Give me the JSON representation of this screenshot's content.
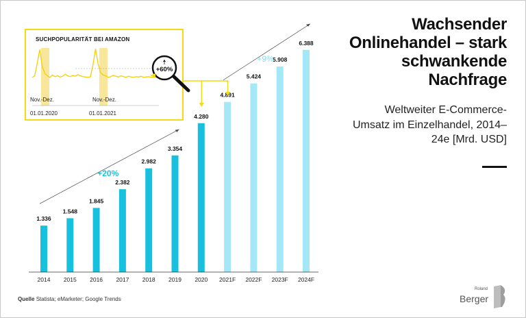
{
  "title": "Wachsender Onlinehandel – stark schwankende Nachfrage",
  "subtitle": "Weltweiter E-Commerce-Umsatz im Einzelhandel, 2014–24e [Mrd. USD]",
  "source_label": "Quelle",
  "source_text": "Statista; eMarketer; Google Trends",
  "logo": {
    "small": "Roland",
    "big": "Berger"
  },
  "colors": {
    "actual": "#17c1de",
    "forecast": "#a4e7f6",
    "inset_border": "#f2da14",
    "inset_highlight": "#f8e79a",
    "growth": "#17c1de",
    "forecast_growth": "#88d9ee"
  },
  "chart_data": [
    {
      "type": "bar",
      "categories": [
        "2014",
        "2015",
        "2016",
        "2017",
        "2018",
        "2019",
        "2020",
        "2021F",
        "2022F",
        "2023F",
        "2024F"
      ],
      "values": [
        1336,
        1548,
        1845,
        2382,
        2982,
        3354,
        4280,
        4891,
        5424,
        5908,
        6388
      ],
      "value_labels": [
        "1.336",
        "1.548",
        "1.845",
        "2.382",
        "2.982",
        "3.354",
        "4.280",
        "4.891",
        "5.424",
        "5.908",
        "6.388"
      ],
      "forecast": [
        false,
        false,
        false,
        false,
        false,
        false,
        false,
        true,
        true,
        true,
        true
      ],
      "annotations": [
        {
          "text": "+20%",
          "from": "2014",
          "to": "2019"
        },
        {
          "text": "+9%",
          "from": "2021F",
          "to": "2024F"
        }
      ],
      "ylim": [
        0,
        6600
      ]
    },
    {
      "type": "line",
      "title": "SUCHPOPULARITÄT BEI AMAZON",
      "x_labels": [
        "01.01.2020",
        "01.01.2021"
      ],
      "highlight_labels": [
        "Nov.-Dez.",
        "Nov.-Dez."
      ],
      "callout": "+60%",
      "x": [
        0,
        2,
        4,
        6,
        8,
        10,
        12,
        14,
        16,
        18,
        20,
        22,
        24,
        26,
        28,
        30,
        32,
        34,
        36,
        38,
        40,
        42,
        44,
        46,
        48,
        50,
        52,
        54,
        56,
        58,
        60,
        62,
        64,
        66,
        68,
        70,
        72,
        74,
        76,
        78,
        80,
        82,
        84,
        86,
        88,
        90,
        92,
        94,
        96,
        98,
        100
      ],
      "y": [
        26,
        30,
        62,
        96,
        52,
        36,
        30,
        26,
        32,
        28,
        30,
        27,
        29,
        34,
        30,
        28,
        31,
        29,
        33,
        30,
        28,
        27,
        26,
        28,
        58,
        98,
        60,
        38,
        32,
        30,
        26,
        28,
        31,
        29,
        27,
        30,
        28,
        26,
        29,
        27,
        26,
        28,
        27,
        29,
        26,
        27,
        28,
        26,
        27,
        26,
        27
      ],
      "ylim": [
        0,
        100
      ]
    }
  ]
}
